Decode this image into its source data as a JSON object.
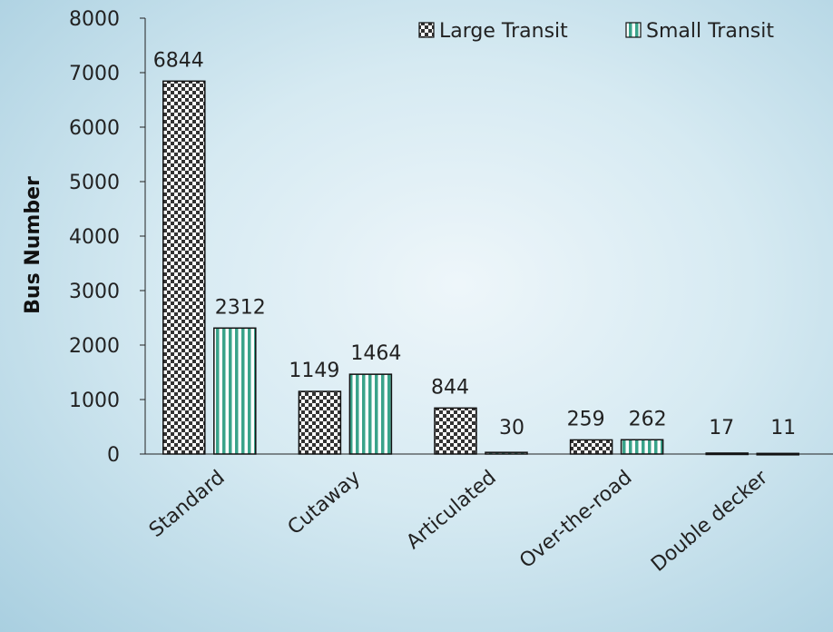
{
  "chart_data": {
    "type": "bar",
    "categories": [
      "Standard",
      "Cutaway",
      "Articulated",
      "Over-the-road",
      "Double decker"
    ],
    "series": [
      {
        "name": "Large Transit",
        "values": [
          6844,
          1149,
          844,
          259,
          17
        ],
        "pattern": "checker"
      },
      {
        "name": "Small Transit",
        "values": [
          2312,
          1464,
          30,
          262,
          11
        ],
        "pattern": "vstripe"
      }
    ],
    "ylabel": "Bus Number",
    "xlabel": "",
    "ylim": [
      0,
      8000
    ],
    "yticks": [
      0,
      1000,
      2000,
      3000,
      4000,
      5000,
      6000,
      7000,
      8000
    ],
    "legend_position": "top-right",
    "grid": false,
    "colors": {
      "checker_dark": "#333333",
      "stripe": "#3aa38a",
      "border": "#111111"
    }
  }
}
